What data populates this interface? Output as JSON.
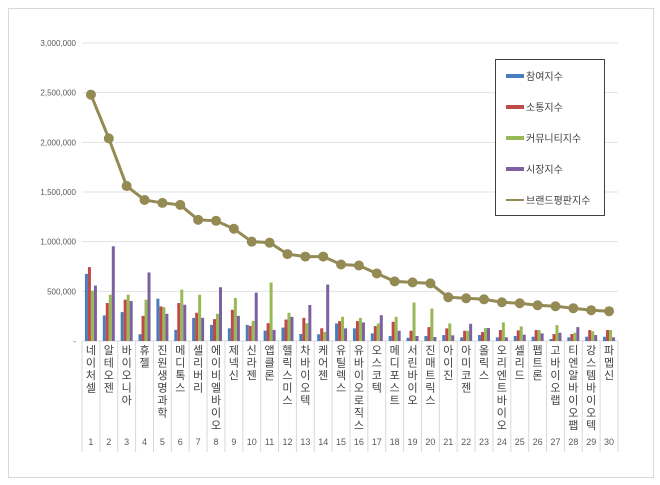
{
  "chart_data": {
    "type": "bar+line",
    "ylim": [
      0,
      3000000
    ],
    "yticks": [
      "-",
      "500,000",
      "1,000,000",
      "1,500,000",
      "2,000,000",
      "2,500,000",
      "3,000,000"
    ],
    "ytick_values": [
      0,
      500000,
      1000000,
      1500000,
      2000000,
      2500000,
      3000000
    ],
    "categories": [
      "네이처셀",
      "알테오젠",
      "바이오니아",
      "휴젤",
      "진원생명과학",
      "메디톡스",
      "셀리버리",
      "에이비엘바이오",
      "제넥신",
      "신라젠",
      "앱클론",
      "헬릭스미스",
      "차바이오텍",
      "케어젠",
      "유틸렉스",
      "유바이오로직스",
      "오스코텍",
      "메디포스트",
      "서린바이오",
      "진매트릭스",
      "아이진",
      "아미코젠",
      "올릭스",
      "오리엔트바이오",
      "셀리드",
      "펩트론",
      "고바이오랩",
      "티엔알바이오팹",
      "강스템바이오텍",
      "파멥신"
    ],
    "ranks": [
      "1",
      "2",
      "3",
      "4",
      "5",
      "6",
      "7",
      "8",
      "9",
      "10",
      "11",
      "12",
      "13",
      "14",
      "15",
      "16",
      "17",
      "18",
      "19",
      "20",
      "21",
      "22",
      "23",
      "24",
      "25",
      "26",
      "27",
      "28",
      "29",
      "30"
    ],
    "series": [
      {
        "name": "참여지수",
        "color": "#4a7ebb",
        "values": [
          676000,
          257000,
          291000,
          68000,
          426000,
          112000,
          233000,
          162000,
          128000,
          162000,
          105000,
          135000,
          71000,
          68000,
          177000,
          127000,
          77000,
          50000,
          33000,
          50000,
          60000,
          37000,
          60000,
          37000,
          50000,
          43000,
          20000,
          37000,
          43000,
          43000
        ]
      },
      {
        "name": "소통지수",
        "color": "#be4b48",
        "values": [
          744000,
          382000,
          416000,
          253000,
          348000,
          382000,
          284000,
          220000,
          314000,
          152000,
          179000,
          216000,
          233000,
          128000,
          200000,
          200000,
          150000,
          193000,
          103000,
          140000,
          127000,
          103000,
          90000,
          110000,
          107000,
          110000,
          70000,
          70000,
          110000,
          110000
        ]
      },
      {
        "name": "커뮤니티지수",
        "color": "#98b954",
        "values": [
          507000,
          466000,
          466000,
          416000,
          341000,
          517000,
          466000,
          274000,
          433000,
          203000,
          588000,
          284000,
          179000,
          91000,
          243000,
          233000,
          177000,
          243000,
          387000,
          327000,
          177000,
          103000,
          130000,
          187000,
          147000,
          110000,
          160000,
          83000,
          97000,
          110000
        ]
      },
      {
        "name": "시장지수",
        "color": "#7d60a0",
        "values": [
          558000,
          953000,
          402000,
          690000,
          274000,
          365000,
          233000,
          541000,
          253000,
          487000,
          112000,
          243000,
          362000,
          568000,
          127000,
          187000,
          260000,
          103000,
          50000,
          40000,
          57000,
          173000,
          130000,
          37000,
          63000,
          77000,
          83000,
          140000,
          60000,
          37000
        ]
      },
      {
        "name": "브랜드평판지수",
        "color": "#948a54",
        "type": "line",
        "values": [
          2480000,
          2040000,
          1560000,
          1420000,
          1390000,
          1370000,
          1220000,
          1210000,
          1130000,
          1000000,
          990000,
          875000,
          850000,
          850000,
          770000,
          760000,
          680000,
          600000,
          590000,
          580000,
          440000,
          430000,
          420000,
          390000,
          380000,
          360000,
          350000,
          330000,
          310000,
          300000
        ]
      }
    ],
    "legend": "right-top"
  }
}
